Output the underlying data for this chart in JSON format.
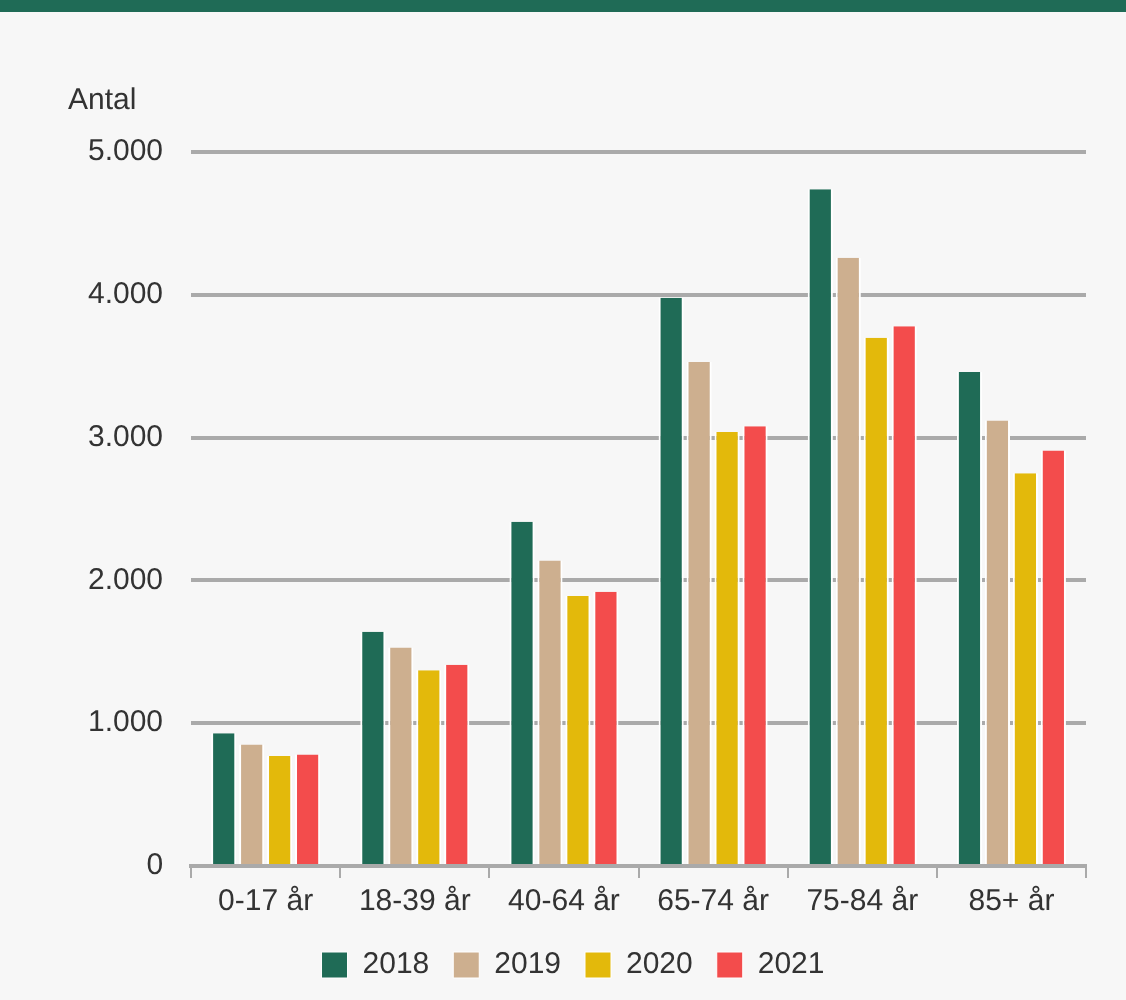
{
  "chart_data": {
    "type": "bar",
    "ylabel": "Antal",
    "categories": [
      "0-17 år",
      "18-39 år",
      "40-64 år",
      "65-74 år",
      "75-84 år",
      "85+ år"
    ],
    "series": [
      {
        "name": "2018",
        "color": "#1f6b56",
        "values": [
          930,
          1640,
          2410,
          3980,
          4740,
          3460
        ]
      },
      {
        "name": "2019",
        "color": "#cdaf8f",
        "values": [
          850,
          1530,
          2140,
          3530,
          4260,
          3120
        ]
      },
      {
        "name": "2020",
        "color": "#e3b90b",
        "values": [
          770,
          1370,
          1890,
          3040,
          3700,
          2750
        ]
      },
      {
        "name": "2021",
        "color": "#f34c4c",
        "values": [
          780,
          1410,
          1920,
          3080,
          3780,
          2910
        ]
      }
    ],
    "ylim": [
      0,
      5000
    ],
    "yticks": [
      {
        "value": 0,
        "label": "0"
      },
      {
        "value": 1000,
        "label": "1.000"
      },
      {
        "value": 2000,
        "label": "2.000"
      },
      {
        "value": 3000,
        "label": "3.000"
      },
      {
        "value": 4000,
        "label": "4.000"
      },
      {
        "value": 5000,
        "label": "5.000"
      }
    ],
    "grid": "y",
    "legend": "bottom"
  }
}
